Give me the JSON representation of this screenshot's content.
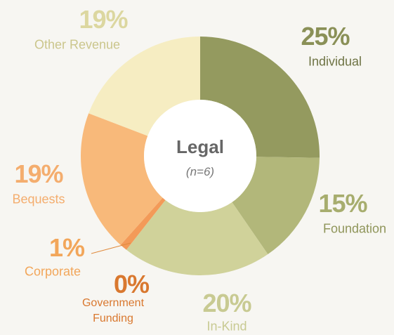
{
  "chart_data": {
    "type": "donut",
    "title": "Legal",
    "subtitle": "(n=6)",
    "categories": [
      "Individual",
      "Foundation",
      "In-Kind",
      "Government Funding",
      "Corporate",
      "Bequests",
      "Other Revenue"
    ],
    "values": [
      25,
      15,
      20,
      0,
      1,
      19,
      19
    ],
    "value_labels": [
      "25%",
      "15%",
      "20%",
      "0%",
      "1%",
      "19%",
      "19%"
    ],
    "colors": [
      "#949a5f",
      "#b2b77a",
      "#d0d29a",
      "#e08a3c",
      "#f39a58",
      "#f8b97a",
      "#f6edc2"
    ],
    "label_colors": [
      "#8a9057",
      "#a7ad6e",
      "#c8ca92",
      "#d9782f",
      "#f2a65a",
      "#f4ad6e",
      "#dcd7a0"
    ]
  }
}
